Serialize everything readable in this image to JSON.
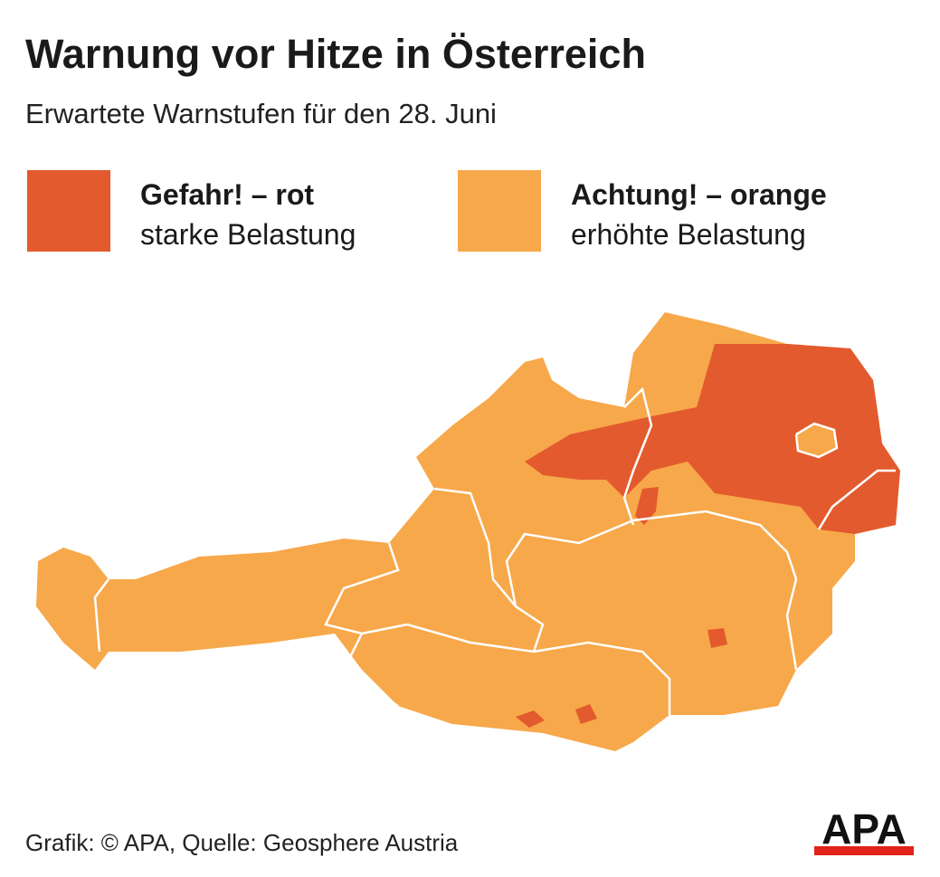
{
  "header": {
    "title": "Warnung vor Hitze in Österreich",
    "subtitle": "Erwartete Warnstufen für den 28. Juni"
  },
  "legend": {
    "items": [
      {
        "label": "Gefahr! – rot",
        "description": "starke Belastung",
        "color": "#e35a2e"
      },
      {
        "label": "Achtung! – orange",
        "description": "erhöhte Belastung",
        "color": "#f7a84a"
      }
    ]
  },
  "footer": {
    "credit": "Grafik: © APA, Quelle: Geosphere Austria"
  },
  "logo": {
    "text": "APA"
  }
}
